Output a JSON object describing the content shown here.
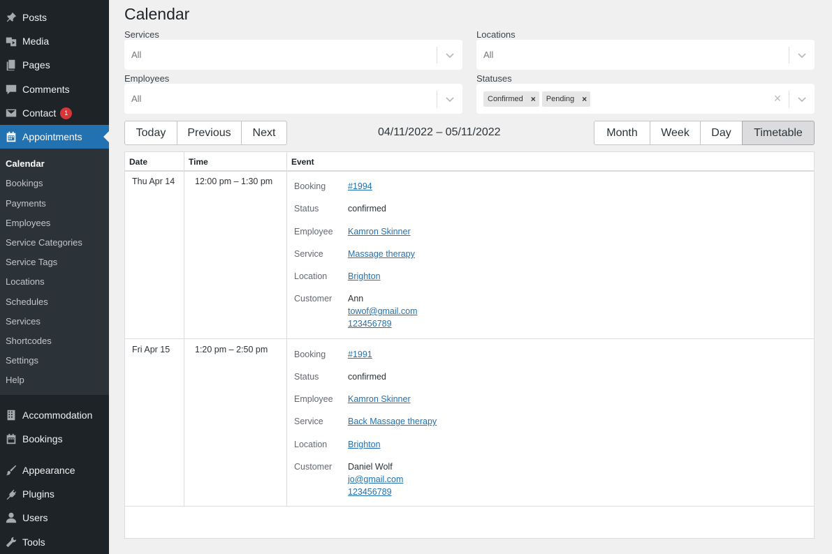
{
  "sidebar": {
    "items": [
      {
        "label": "Posts",
        "icon": "pin-icon"
      },
      {
        "label": "Media",
        "icon": "media-icon"
      },
      {
        "label": "Pages",
        "icon": "pages-icon"
      },
      {
        "label": "Comments",
        "icon": "comment-icon"
      },
      {
        "label": "Contact",
        "icon": "mail-icon",
        "badge": "1"
      },
      {
        "label": "Appointments",
        "icon": "calendar-icon"
      }
    ],
    "submenu": [
      "Calendar",
      "Bookings",
      "Payments",
      "Employees",
      "Service Categories",
      "Service Tags",
      "Locations",
      "Schedules",
      "Services",
      "Shortcodes",
      "Settings",
      "Help"
    ],
    "lower_items": [
      {
        "label": "Accommodation",
        "icon": "building-icon"
      },
      {
        "label": "Bookings",
        "icon": "calendar-icon"
      },
      {
        "label": "Appearance",
        "icon": "brush-icon"
      },
      {
        "label": "Plugins",
        "icon": "plug-icon"
      },
      {
        "label": "Users",
        "icon": "user-icon"
      },
      {
        "label": "Tools",
        "icon": "wrench-icon"
      }
    ]
  },
  "page": {
    "title": "Calendar"
  },
  "filters": {
    "services": {
      "label": "Services",
      "value": "All"
    },
    "locations": {
      "label": "Locations",
      "value": "All"
    },
    "employees": {
      "label": "Employees",
      "value": "All"
    },
    "statuses": {
      "label": "Statuses",
      "chips": [
        "Confirmed",
        "Pending"
      ],
      "clear": "×"
    }
  },
  "toolbar": {
    "nav": [
      "Today",
      "Previous",
      "Next"
    ],
    "range": "04/11/2022 – 05/11/2022",
    "views": [
      "Month",
      "Week",
      "Day",
      "Timetable"
    ],
    "active_view": "Timetable"
  },
  "table": {
    "headers": [
      "Date",
      "Time",
      "Event"
    ],
    "field_labels": [
      "Booking",
      "Status",
      "Employee",
      "Service",
      "Location",
      "Customer"
    ],
    "rows": [
      {
        "date": "Thu Apr 14",
        "time": "12:00 pm – 1:30 pm",
        "booking": "#1994",
        "status": "confirmed",
        "employee": "Kamron Skinner",
        "service": "Massage therapy",
        "location": "Brighton",
        "customer_name": "Ann",
        "customer_email": "towof@gmail.com",
        "customer_phone": "123456789"
      },
      {
        "date": "Fri Apr 15",
        "time": "1:20 pm – 2:50 pm",
        "booking": "#1991",
        "status": "confirmed",
        "employee": "Kamron Skinner",
        "service": "Back Massage therapy",
        "location": "Brighton",
        "customer_name": "Daniel Wolf",
        "customer_email": "jo@gmail.com",
        "customer_phone": "123456789"
      }
    ]
  },
  "colors": {
    "sidebar_bg": "#1d2327",
    "accent": "#2271b1",
    "badge": "#d63638"
  }
}
